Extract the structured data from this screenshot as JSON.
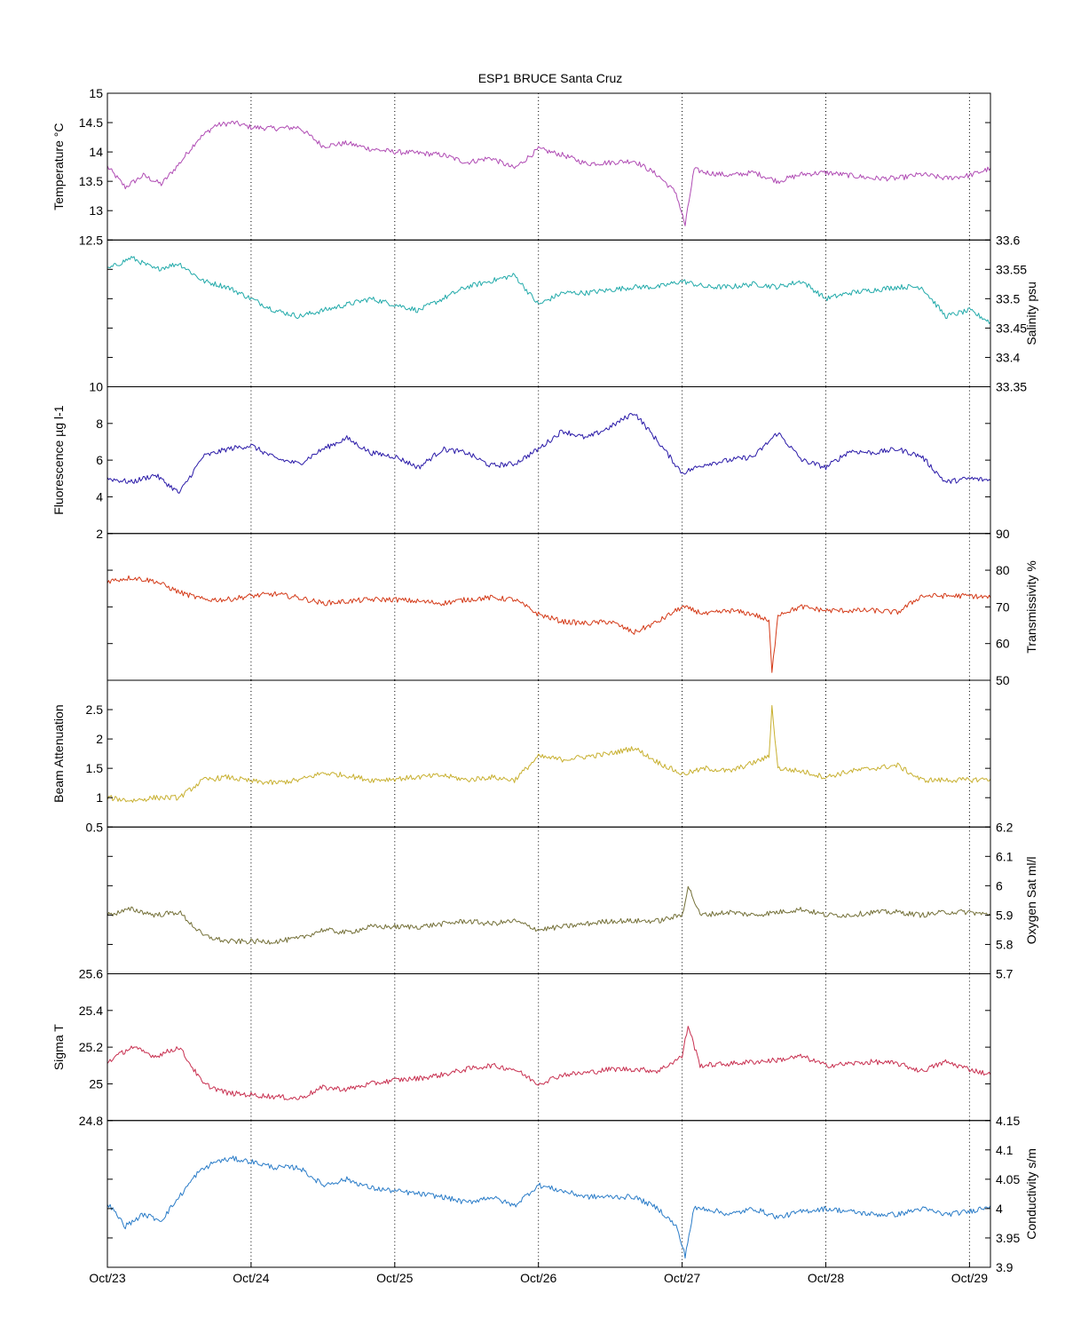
{
  "chart_data": {
    "type": "line",
    "title": "ESP1 BRUCE Santa Cruz",
    "x_axis": {
      "type": "date",
      "min": "2007-10-23T00:00",
      "max": "2007-10-29T03:30",
      "tick_labels": [
        "Oct/23",
        "Oct/24",
        "Oct/25",
        "Oct/26",
        "Oct/27",
        "Oct/28",
        "Oct/29"
      ],
      "tick_values": [
        "2007-10-23T00:00",
        "2007-10-24T00:00",
        "2007-10-25T00:00",
        "2007-10-26T00:00",
        "2007-10-27T00:00",
        "2007-10-28T00:00",
        "2007-10-29T00:00"
      ],
      "grid": "dotted vertical at each day"
    },
    "panels": [
      {
        "id": "temperature",
        "ylabel": "Temperature °C",
        "axis_side": "left",
        "ylim": [
          12.5,
          15
        ],
        "ticks": [
          12.5,
          13,
          13.5,
          14,
          14.5,
          15
        ],
        "color": "#b04cb4",
        "x": [
          "2007-10-23T00:00",
          "2007-10-23T03:00",
          "2007-10-23T06:00",
          "2007-10-23T09:00",
          "2007-10-23T12:00",
          "2007-10-23T15:00",
          "2007-10-23T18:00",
          "2007-10-23T21:00",
          "2007-10-24T00:00",
          "2007-10-24T04:00",
          "2007-10-24T08:00",
          "2007-10-24T12:00",
          "2007-10-24T16:00",
          "2007-10-24T20:00",
          "2007-10-25T00:00",
          "2007-10-25T04:00",
          "2007-10-25T08:00",
          "2007-10-25T12:00",
          "2007-10-25T16:00",
          "2007-10-25T20:00",
          "2007-10-26T00:00",
          "2007-10-26T04:00",
          "2007-10-26T08:00",
          "2007-10-26T12:00",
          "2007-10-26T16:00",
          "2007-10-26T20:00",
          "2007-10-26T23:00",
          "2007-10-27T00:30",
          "2007-10-27T02:00",
          "2007-10-27T04:00",
          "2007-10-27T08:00",
          "2007-10-27T12:00",
          "2007-10-27T16:00",
          "2007-10-27T20:00",
          "2007-10-28T00:00",
          "2007-10-28T04:00",
          "2007-10-28T08:00",
          "2007-10-28T12:00",
          "2007-10-28T16:00",
          "2007-10-28T20:00",
          "2007-10-29T00:00",
          "2007-10-29T03:30"
        ],
        "values": [
          13.75,
          13.4,
          13.6,
          13.45,
          13.8,
          14.2,
          14.45,
          14.5,
          14.42,
          14.4,
          14.42,
          14.1,
          14.15,
          14.05,
          14.0,
          13.98,
          13.95,
          13.82,
          13.9,
          13.72,
          14.05,
          13.95,
          13.8,
          13.82,
          13.85,
          13.6,
          13.3,
          12.75,
          13.7,
          13.65,
          13.6,
          13.65,
          13.5,
          13.62,
          13.65,
          13.6,
          13.55,
          13.55,
          13.62,
          13.55,
          13.6,
          13.72
        ]
      },
      {
        "id": "salinity",
        "ylabel": "Salinity psu",
        "axis_side": "right",
        "ylim": [
          33.35,
          33.6
        ],
        "ticks": [
          33.35,
          33.4,
          33.45,
          33.5,
          33.55,
          33.6
        ],
        "color": "#22aaaa",
        "x": [
          "2007-10-23T00:00",
          "2007-10-23T04:00",
          "2007-10-23T08:00",
          "2007-10-23T12:00",
          "2007-10-23T16:00",
          "2007-10-23T20:00",
          "2007-10-24T00:00",
          "2007-10-24T04:00",
          "2007-10-24T08:00",
          "2007-10-24T12:00",
          "2007-10-24T16:00",
          "2007-10-24T20:00",
          "2007-10-25T00:00",
          "2007-10-25T04:00",
          "2007-10-25T08:00",
          "2007-10-25T12:00",
          "2007-10-25T16:00",
          "2007-10-25T20:00",
          "2007-10-26T00:00",
          "2007-10-26T04:00",
          "2007-10-26T08:00",
          "2007-10-26T12:00",
          "2007-10-26T16:00",
          "2007-10-26T20:00",
          "2007-10-27T00:00",
          "2007-10-27T04:00",
          "2007-10-27T08:00",
          "2007-10-27T12:00",
          "2007-10-27T16:00",
          "2007-10-27T20:00",
          "2007-10-28T00:00",
          "2007-10-28T04:00",
          "2007-10-28T08:00",
          "2007-10-28T12:00",
          "2007-10-28T16:00",
          "2007-10-28T20:00",
          "2007-10-29T00:00",
          "2007-10-29T03:30"
        ],
        "values": [
          33.55,
          33.57,
          33.55,
          33.56,
          33.53,
          33.52,
          33.5,
          33.48,
          33.47,
          33.48,
          33.49,
          33.5,
          33.49,
          33.48,
          33.5,
          33.52,
          33.53,
          33.54,
          33.49,
          33.51,
          33.51,
          33.515,
          33.52,
          33.52,
          33.53,
          33.52,
          33.52,
          33.525,
          33.52,
          33.53,
          33.5,
          33.51,
          33.515,
          33.52,
          33.52,
          33.47,
          33.48,
          33.46
        ]
      },
      {
        "id": "fluorescence",
        "ylabel": "Fluorescence µg l-1",
        "axis_side": "left",
        "ylim": [
          2,
          10
        ],
        "ticks": [
          2,
          4,
          6,
          8,
          10
        ],
        "color": "#2a1aa8",
        "x": [
          "2007-10-23T00:00",
          "2007-10-23T04:00",
          "2007-10-23T08:00",
          "2007-10-23T12:00",
          "2007-10-23T16:00",
          "2007-10-23T20:00",
          "2007-10-24T00:00",
          "2007-10-24T04:00",
          "2007-10-24T08:00",
          "2007-10-24T12:00",
          "2007-10-24T16:00",
          "2007-10-24T20:00",
          "2007-10-25T00:00",
          "2007-10-25T04:00",
          "2007-10-25T08:00",
          "2007-10-25T12:00",
          "2007-10-25T16:00",
          "2007-10-25T20:00",
          "2007-10-26T00:00",
          "2007-10-26T04:00",
          "2007-10-26T08:00",
          "2007-10-26T12:00",
          "2007-10-26T16:00",
          "2007-10-26T20:00",
          "2007-10-27T00:00",
          "2007-10-27T04:00",
          "2007-10-27T08:00",
          "2007-10-27T12:00",
          "2007-10-27T16:00",
          "2007-10-27T20:00",
          "2007-10-28T00:00",
          "2007-10-28T04:00",
          "2007-10-28T08:00",
          "2007-10-28T12:00",
          "2007-10-28T16:00",
          "2007-10-28T20:00",
          "2007-10-29T00:00",
          "2007-10-29T03:30"
        ],
        "values": [
          5.0,
          4.8,
          5.2,
          4.2,
          6.2,
          6.6,
          6.8,
          6.1,
          5.8,
          6.6,
          7.2,
          6.4,
          6.2,
          5.6,
          6.6,
          6.4,
          5.7,
          5.8,
          6.6,
          7.6,
          7.2,
          7.8,
          8.6,
          7.0,
          5.3,
          5.8,
          6.0,
          6.2,
          7.5,
          6.0,
          5.6,
          6.5,
          6.4,
          6.6,
          6.2,
          4.8,
          5.0,
          4.9
        ]
      },
      {
        "id": "transmissivity",
        "ylabel": "Transmissivity %",
        "axis_side": "right",
        "ylim": [
          50,
          90
        ],
        "ticks": [
          50,
          60,
          70,
          80,
          90
        ],
        "color": "#d43a18",
        "x": [
          "2007-10-23T00:00",
          "2007-10-23T04:00",
          "2007-10-23T08:00",
          "2007-10-23T12:00",
          "2007-10-23T16:00",
          "2007-10-23T20:00",
          "2007-10-24T00:00",
          "2007-10-24T04:00",
          "2007-10-24T08:00",
          "2007-10-24T12:00",
          "2007-10-24T16:00",
          "2007-10-24T20:00",
          "2007-10-25T00:00",
          "2007-10-25T04:00",
          "2007-10-25T08:00",
          "2007-10-25T12:00",
          "2007-10-25T16:00",
          "2007-10-25T20:00",
          "2007-10-26T00:00",
          "2007-10-26T04:00",
          "2007-10-26T08:00",
          "2007-10-26T12:00",
          "2007-10-26T16:00",
          "2007-10-26T20:00",
          "2007-10-27T00:00",
          "2007-10-27T04:00",
          "2007-10-27T08:00",
          "2007-10-27T12:00",
          "2007-10-27T14:30",
          "2007-10-27T15:00",
          "2007-10-27T16:00",
          "2007-10-27T20:00",
          "2007-10-28T00:00",
          "2007-10-28T04:00",
          "2007-10-28T08:00",
          "2007-10-28T12:00",
          "2007-10-28T16:00",
          "2007-10-28T20:00",
          "2007-10-29T00:00",
          "2007-10-29T03:30"
        ],
        "values": [
          77,
          78,
          77,
          74,
          72,
          72,
          73,
          73.5,
          72.5,
          71,
          71.5,
          72,
          72,
          71.5,
          71,
          72,
          72.5,
          72,
          68,
          66,
          65.5,
          66,
          63,
          66,
          70,
          68,
          69,
          68,
          66,
          52,
          68,
          70,
          69,
          69,
          69,
          68.5,
          73,
          73,
          73,
          72.5
        ]
      },
      {
        "id": "beam_attenuation",
        "ylabel": "Beam Attenuation",
        "axis_side": "left",
        "ylim": [
          0.5,
          3
        ],
        "ticks": [
          0.5,
          1,
          1.5,
          2,
          2.5
        ],
        "color": "#c8b030",
        "x": [
          "2007-10-23T00:00",
          "2007-10-23T04:00",
          "2007-10-23T08:00",
          "2007-10-23T12:00",
          "2007-10-23T16:00",
          "2007-10-23T20:00",
          "2007-10-24T00:00",
          "2007-10-24T04:00",
          "2007-10-24T08:00",
          "2007-10-24T12:00",
          "2007-10-24T16:00",
          "2007-10-24T20:00",
          "2007-10-25T00:00",
          "2007-10-25T04:00",
          "2007-10-25T08:00",
          "2007-10-25T12:00",
          "2007-10-25T16:00",
          "2007-10-25T20:00",
          "2007-10-26T00:00",
          "2007-10-26T04:00",
          "2007-10-26T08:00",
          "2007-10-26T12:00",
          "2007-10-26T16:00",
          "2007-10-26T20:00",
          "2007-10-27T00:00",
          "2007-10-27T04:00",
          "2007-10-27T08:00",
          "2007-10-27T12:00",
          "2007-10-27T14:30",
          "2007-10-27T15:00",
          "2007-10-27T16:00",
          "2007-10-27T20:00",
          "2007-10-28T00:00",
          "2007-10-28T04:00",
          "2007-10-28T08:00",
          "2007-10-28T12:00",
          "2007-10-28T16:00",
          "2007-10-28T20:00",
          "2007-10-29T00:00",
          "2007-10-29T03:30"
        ],
        "values": [
          1.0,
          0.95,
          1.0,
          1.0,
          1.3,
          1.35,
          1.28,
          1.25,
          1.3,
          1.42,
          1.38,
          1.3,
          1.32,
          1.35,
          1.38,
          1.3,
          1.35,
          1.3,
          1.7,
          1.65,
          1.7,
          1.75,
          1.85,
          1.6,
          1.4,
          1.5,
          1.45,
          1.6,
          1.7,
          2.55,
          1.5,
          1.45,
          1.35,
          1.45,
          1.5,
          1.55,
          1.3,
          1.3,
          1.3,
          1.32
        ]
      },
      {
        "id": "oxygen_sat",
        "ylabel": "Oxygen Sat ml/l",
        "axis_side": "right",
        "ylim": [
          5.7,
          6.2
        ],
        "ticks": [
          5.7,
          5.8,
          5.9,
          6,
          6.1,
          6.2
        ],
        "color": "#747038",
        "x": [
          "2007-10-23T00:00",
          "2007-10-23T04:00",
          "2007-10-23T08:00",
          "2007-10-23T12:00",
          "2007-10-23T16:00",
          "2007-10-23T20:00",
          "2007-10-24T00:00",
          "2007-10-24T04:00",
          "2007-10-24T08:00",
          "2007-10-24T12:00",
          "2007-10-24T16:00",
          "2007-10-24T20:00",
          "2007-10-25T00:00",
          "2007-10-25T04:00",
          "2007-10-25T08:00",
          "2007-10-25T12:00",
          "2007-10-25T16:00",
          "2007-10-25T20:00",
          "2007-10-26T00:00",
          "2007-10-26T04:00",
          "2007-10-26T08:00",
          "2007-10-26T12:00",
          "2007-10-26T16:00",
          "2007-10-26T20:00",
          "2007-10-27T00:00",
          "2007-10-27T01:00",
          "2007-10-27T03:00",
          "2007-10-27T08:00",
          "2007-10-27T12:00",
          "2007-10-27T16:00",
          "2007-10-27T20:00",
          "2007-10-28T00:00",
          "2007-10-28T04:00",
          "2007-10-28T08:00",
          "2007-10-28T12:00",
          "2007-10-28T16:00",
          "2007-10-28T20:00",
          "2007-10-29T00:00",
          "2007-10-29T03:30"
        ],
        "values": [
          5.9,
          5.92,
          5.9,
          5.91,
          5.83,
          5.81,
          5.81,
          5.81,
          5.82,
          5.85,
          5.84,
          5.86,
          5.86,
          5.86,
          5.87,
          5.88,
          5.87,
          5.88,
          5.85,
          5.86,
          5.87,
          5.88,
          5.88,
          5.88,
          5.9,
          6.0,
          5.9,
          5.91,
          5.9,
          5.91,
          5.92,
          5.9,
          5.9,
          5.91,
          5.91,
          5.9,
          5.91,
          5.91,
          5.9
        ]
      },
      {
        "id": "sigma_t",
        "ylabel": "Sigma T",
        "axis_side": "left",
        "ylim": [
          24.8,
          25.6
        ],
        "ticks": [
          24.8,
          25,
          25.2,
          25.4,
          25.6
        ],
        "color": "#c83050",
        "x": [
          "2007-10-23T00:00",
          "2007-10-23T04:00",
          "2007-10-23T08:00",
          "2007-10-23T12:00",
          "2007-10-23T16:00",
          "2007-10-23T20:00",
          "2007-10-24T00:00",
          "2007-10-24T04:00",
          "2007-10-24T08:00",
          "2007-10-24T12:00",
          "2007-10-24T16:00",
          "2007-10-24T20:00",
          "2007-10-25T00:00",
          "2007-10-25T04:00",
          "2007-10-25T08:00",
          "2007-10-25T12:00",
          "2007-10-25T16:00",
          "2007-10-25T20:00",
          "2007-10-26T00:00",
          "2007-10-26T04:00",
          "2007-10-26T08:00",
          "2007-10-26T12:00",
          "2007-10-26T16:00",
          "2007-10-26T20:00",
          "2007-10-27T00:00",
          "2007-10-27T01:00",
          "2007-10-27T03:00",
          "2007-10-27T08:00",
          "2007-10-27T12:00",
          "2007-10-27T16:00",
          "2007-10-27T20:00",
          "2007-10-28T00:00",
          "2007-10-28T04:00",
          "2007-10-28T08:00",
          "2007-10-28T12:00",
          "2007-10-28T16:00",
          "2007-10-28T20:00",
          "2007-10-29T00:00",
          "2007-10-29T03:30"
        ],
        "values": [
          25.12,
          25.2,
          25.15,
          25.2,
          25.0,
          24.95,
          24.94,
          24.93,
          24.92,
          24.98,
          24.97,
          25.0,
          25.02,
          25.03,
          25.05,
          25.08,
          25.1,
          25.08,
          25.0,
          25.05,
          25.06,
          25.08,
          25.08,
          25.07,
          25.15,
          25.32,
          25.1,
          25.11,
          25.12,
          25.13,
          25.15,
          25.1,
          25.11,
          25.12,
          25.11,
          25.07,
          25.12,
          25.08,
          25.05
        ]
      },
      {
        "id": "conductivity",
        "ylabel": "Conductivity s/m",
        "axis_side": "right",
        "ylim": [
          3.9,
          4.15
        ],
        "ticks": [
          3.9,
          3.95,
          4,
          4.05,
          4.1,
          4.15
        ],
        "color": "#2a7cc8",
        "x": [
          "2007-10-23T00:00",
          "2007-10-23T03:00",
          "2007-10-23T06:00",
          "2007-10-23T09:00",
          "2007-10-23T12:00",
          "2007-10-23T15:00",
          "2007-10-23T18:00",
          "2007-10-23T21:00",
          "2007-10-24T00:00",
          "2007-10-24T04:00",
          "2007-10-24T08:00",
          "2007-10-24T12:00",
          "2007-10-24T16:00",
          "2007-10-24T20:00",
          "2007-10-25T00:00",
          "2007-10-25T04:00",
          "2007-10-25T08:00",
          "2007-10-25T12:00",
          "2007-10-25T16:00",
          "2007-10-25T20:00",
          "2007-10-26T00:00",
          "2007-10-26T04:00",
          "2007-10-26T08:00",
          "2007-10-26T12:00",
          "2007-10-26T16:00",
          "2007-10-26T20:00",
          "2007-10-26T23:00",
          "2007-10-27T00:30",
          "2007-10-27T02:00",
          "2007-10-27T04:00",
          "2007-10-27T08:00",
          "2007-10-27T12:00",
          "2007-10-27T16:00",
          "2007-10-27T20:00",
          "2007-10-28T00:00",
          "2007-10-28T04:00",
          "2007-10-28T08:00",
          "2007-10-28T12:00",
          "2007-10-28T16:00",
          "2007-10-28T20:00",
          "2007-10-29T00:00",
          "2007-10-29T03:30"
        ],
        "values": [
          4.01,
          3.97,
          3.99,
          3.98,
          4.02,
          4.06,
          4.08,
          4.085,
          4.08,
          4.07,
          4.07,
          4.04,
          4.05,
          4.035,
          4.03,
          4.025,
          4.02,
          4.01,
          4.02,
          4.005,
          4.04,
          4.03,
          4.02,
          4.02,
          4.02,
          4.0,
          3.97,
          3.92,
          4.0,
          4.0,
          3.99,
          4.0,
          3.985,
          3.995,
          4.0,
          3.995,
          3.99,
          3.99,
          4.0,
          3.99,
          3.995,
          4.005
        ]
      }
    ]
  }
}
